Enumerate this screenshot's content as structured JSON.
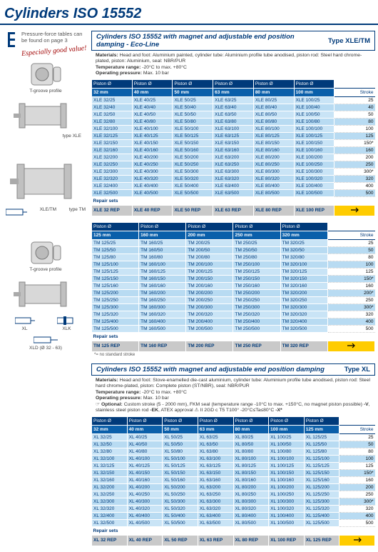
{
  "page_title": "Cylinders ISO 15552",
  "sidebar": {
    "note": "Pressure-force tables can be found on page 3",
    "good_value": "Especially good value!",
    "captions": {
      "t_groove": "T-groove profile",
      "type_xle": "type XLE",
      "xle_tm": "XLE/TM",
      "type_tm": "type TM",
      "xl": "XL",
      "xlk": "XLK",
      "xld": "XLD (Ø 32 - 63)"
    }
  },
  "sections": [
    {
      "title": "Cylinders ISO 15552 with magnet and adjustable end position damping - Eco-Line",
      "type_label": "Type XLE/TM",
      "specs": [
        "<b>Materials:</b> Head and foot: Aluminium painted, cylinder tube: Aluminium profile tube anodised, piston rod: Steel hard chrome-plated, piston: Aluminium, seal: NBR/PUR",
        "<b>Temperature range:</b> -20°C to max. +80°C",
        "<b>Operating pressure:</b> Max. 10 bar"
      ],
      "col_header_label": "Piston Ø",
      "col_subheaders": [
        "32 mm",
        "40 mm",
        "50 mm",
        "63 mm",
        "80 mm",
        "100 mm"
      ],
      "stroke_col": "Stroke",
      "rows": [
        {
          "c": [
            "XLE 32/25",
            "XLE 40/25",
            "XLE 50/25",
            "XLE 63/25",
            "XLE 80/25",
            "XLE 100/25"
          ],
          "s": "25"
        },
        {
          "c": [
            "XLE 32/40",
            "XLE 40/40",
            "XLE 50/40",
            "XLE 63/40",
            "XLE 80/40",
            "XLE 100/40"
          ],
          "s": "40"
        },
        {
          "c": [
            "XLE 32/50",
            "XLE 40/50",
            "XLE 50/50",
            "XLE 63/50",
            "XLE 80/50",
            "XLE 100/50"
          ],
          "s": "50"
        },
        {
          "c": [
            "XLE 32/80",
            "XLE 40/80",
            "XLE 50/80",
            "XLE 63/80",
            "XLE 80/80",
            "XLE 100/80"
          ],
          "s": "80"
        },
        {
          "c": [
            "XLE 32/100",
            "XLE 40/100",
            "XLE 50/100",
            "XLE 63/100",
            "XLE 80/100",
            "XLE 100/100"
          ],
          "s": "100"
        },
        {
          "c": [
            "XLE 32/125",
            "XLE 40/125",
            "XLE 50/125",
            "XLE 63/125",
            "XLE 80/125",
            "XLE 100/125"
          ],
          "s": "125"
        },
        {
          "c": [
            "XLE 32/150",
            "XLE 40/150",
            "XLE 50/150",
            "XLE 63/150",
            "XLE 80/150",
            "XLE 100/150"
          ],
          "s": "150*"
        },
        {
          "c": [
            "XLE 32/160",
            "XLE 40/160",
            "XLE 50/160",
            "XLE 63/160",
            "XLE 80/160",
            "XLE 100/160"
          ],
          "s": "160"
        },
        {
          "c": [
            "XLE 32/200",
            "XLE 40/200",
            "XLE 50/200",
            "XLE 63/200",
            "XLE 80/200",
            "XLE 100/200"
          ],
          "s": "200"
        },
        {
          "c": [
            "XLE 32/250",
            "XLE 40/250",
            "XLE 50/250",
            "XLE 63/250",
            "XLE 80/250",
            "XLE 100/250"
          ],
          "s": "250"
        },
        {
          "c": [
            "XLE 32/300",
            "XLE 40/300",
            "XLE 50/300",
            "XLE 63/300",
            "XLE 80/300",
            "XLE 100/300"
          ],
          "s": "300*"
        },
        {
          "c": [
            "XLE 32/320",
            "XLE 40/320",
            "XLE 50/320",
            "XLE 63/320",
            "XLE 80/320",
            "XLE 100/320"
          ],
          "s": "320"
        },
        {
          "c": [
            "XLE 32/400",
            "XLE 40/400",
            "XLE 50/400",
            "XLE 63/400",
            "XLE 80/400",
            "XLE 100/400"
          ],
          "s": "400"
        },
        {
          "c": [
            "XLE 32/500",
            "XLE 40/500",
            "XLE 50/500",
            "XLE 63/500",
            "XLE 80/500",
            "XLE 100/500"
          ],
          "s": "500"
        }
      ],
      "repair_label": "Repair sets",
      "repair_row": [
        "XLE 32 REP",
        "XLE 40 REP",
        "XLE 50 REP",
        "XLE 63 REP",
        "XLE 80 REP",
        "XLE 100 REP"
      ],
      "footnote": ""
    },
    {
      "title": "",
      "type_label": "",
      "specs": [],
      "col_header_label": "Piston Ø",
      "col_subheaders": [
        "125 mm",
        "160 mm",
        "200 mm",
        "250 mm",
        "320 mm"
      ],
      "stroke_col": "Stroke",
      "rows": [
        {
          "c": [
            "TM 125/25",
            "TM 160/25",
            "TM 200/25",
            "TM 250/25",
            "TM 320/25"
          ],
          "s": "25"
        },
        {
          "c": [
            "TM 125/50",
            "TM 160/50",
            "TM 200/50",
            "TM 250/50",
            "TM 320/50"
          ],
          "s": "50"
        },
        {
          "c": [
            "TM 125/80",
            "TM 160/80",
            "TM 200/80",
            "TM 250/80",
            "TM 320/80"
          ],
          "s": "80"
        },
        {
          "c": [
            "TM 125/100",
            "TM 160/100",
            "TM 200/100",
            "TM 250/100",
            "TM 320/100"
          ],
          "s": "100"
        },
        {
          "c": [
            "TM 125/125",
            "TM 160/125",
            "TM 200/125",
            "TM 250/125",
            "TM 320/125"
          ],
          "s": "125"
        },
        {
          "c": [
            "TM 125/150",
            "TM 160/150",
            "TM 200/150",
            "TM 250/150",
            "TM 320/150"
          ],
          "s": "150*"
        },
        {
          "c": [
            "TM 125/160",
            "TM 160/160",
            "TM 200/160",
            "TM 250/160",
            "TM 320/160"
          ],
          "s": "160"
        },
        {
          "c": [
            "TM 125/200",
            "TM 160/200",
            "TM 200/200",
            "TM 250/200",
            "TM 320/200"
          ],
          "s": "200*"
        },
        {
          "c": [
            "TM 125/250",
            "TM 160/250",
            "TM 200/250",
            "TM 250/250",
            "TM 320/250"
          ],
          "s": "250"
        },
        {
          "c": [
            "TM 125/300",
            "TM 160/300",
            "TM 200/300",
            "TM 250/300",
            "TM 320/300"
          ],
          "s": "300*"
        },
        {
          "c": [
            "TM 125/320",
            "TM 160/320",
            "TM 200/320",
            "TM 250/320",
            "TM 320/320"
          ],
          "s": "320"
        },
        {
          "c": [
            "TM 125/400",
            "TM 160/400",
            "TM 200/400",
            "TM 250/400",
            "TM 320/400"
          ],
          "s": "400"
        },
        {
          "c": [
            "TM 125/500",
            "TM 160/500",
            "TM 200/500",
            "TM 250/500",
            "TM 320/500"
          ],
          "s": "500"
        }
      ],
      "repair_label": "Repair sets",
      "repair_row": [
        "TM 125 REP",
        "TM 160 REP",
        "TM 200 REP",
        "TM 250 REP",
        "TM 320 REP"
      ],
      "footnote": "*= no standard stroke"
    },
    {
      "title": "Cylinders ISO 15552 with magnet and adjustable end position damping",
      "type_label": "Type XL",
      "specs": [
        "<b>Materials:</b> Head and foot: Stove-enamelled die-cast aluminium, cylinder tube: Aluminium profile tube anodised, piston rod: Steel hard chrome-plated, piston: Complete piston (ST/NBR), seal: NBR/PUR",
        "<b>Temperature range:</b> -20°C to max. +80°C",
        "<b>Operating pressure:</b> Max. 10 bar",
        "☞ <b>Optional:</b> Custom stroke (5 - 2000 mm), FKM seal (temperature range -10°C to max. +150°C, no magnet piston possible) <b>-V</b>, stainless steel piston rod <b>-EK</b>, ATEX approval ⚠ II 2GD c T5 T100° -20°C≤Ta≤80°C <b>-X*</b>"
      ],
      "col_header_label": "Piston Ø",
      "col_subheaders": [
        "32 mm",
        "40 mm",
        "50 mm",
        "63 mm",
        "80 mm",
        "100 mm",
        "125 mm"
      ],
      "stroke_col": "Stroke",
      "rows": [
        {
          "c": [
            "XL 32/25",
            "XL 40/25",
            "XL 50/25",
            "XL 63/25",
            "XL 80/25",
            "XL 100/25",
            "XL 125/25"
          ],
          "s": "25"
        },
        {
          "c": [
            "XL 32/50",
            "XL 40/50",
            "XL 50/50",
            "XL 63/50",
            "XL 80/50",
            "XL 100/50",
            "XL 125/50"
          ],
          "s": "50"
        },
        {
          "c": [
            "XL 32/80",
            "XL 40/80",
            "XL 50/80",
            "XL 63/80",
            "XL 80/80",
            "XL 100/80",
            "XL 125/80"
          ],
          "s": "80"
        },
        {
          "c": [
            "XL 32/100",
            "XL 40/100",
            "XL 50/100",
            "XL 63/100",
            "XL 80/100",
            "XL 100/100",
            "XL 125/100"
          ],
          "s": "100"
        },
        {
          "c": [
            "XL 32/125",
            "XL 40/125",
            "XL 50/125",
            "XL 63/125",
            "XL 80/125",
            "XL 100/125",
            "XL 125/125"
          ],
          "s": "125"
        },
        {
          "c": [
            "XL 32/150",
            "XL 40/150",
            "XL 50/150",
            "XL 63/150",
            "XL 80/150",
            "XL 100/150",
            "XL 125/150"
          ],
          "s": "150*"
        },
        {
          "c": [
            "XL 32/160",
            "XL 40/160",
            "XL 50/160",
            "XL 63/160",
            "XL 80/160",
            "XL 100/160",
            "XL 125/160"
          ],
          "s": "160"
        },
        {
          "c": [
            "XL 32/200",
            "XL 40/200",
            "XL 50/200",
            "XL 63/200",
            "XL 80/200",
            "XL 100/200",
            "XL 125/200"
          ],
          "s": "200"
        },
        {
          "c": [
            "XL 32/250",
            "XL 40/250",
            "XL 50/250",
            "XL 63/250",
            "XL 80/250",
            "XL 100/250",
            "XL 125/250"
          ],
          "s": "250"
        },
        {
          "c": [
            "XL 32/300",
            "XL 40/300",
            "XL 50/300",
            "XL 63/300",
            "XL 80/300",
            "XL 100/300",
            "XL 125/300"
          ],
          "s": "300*"
        },
        {
          "c": [
            "XL 32/320",
            "XL 40/320",
            "XL 50/320",
            "XL 63/320",
            "XL 80/320",
            "XL 100/320",
            "XL 125/320"
          ],
          "s": "320"
        },
        {
          "c": [
            "XL 32/400",
            "XL 40/400",
            "XL 50/400",
            "XL 63/400",
            "XL 80/400",
            "XL 100/400",
            "XL 125/400"
          ],
          "s": "400"
        },
        {
          "c": [
            "XL 32/500",
            "XL 40/500",
            "XL 50/500",
            "XL 63/500",
            "XL 80/500",
            "XL 100/500",
            "XL 125/500"
          ],
          "s": "500"
        }
      ],
      "repair_label": "Repair sets",
      "repair_row": [
        "XL 32 REP",
        "XL 40 REP",
        "XL 50 REP",
        "XL 63 REP",
        "XL 80 REP",
        "XL 100 REP",
        "XL 125 REP"
      ],
      "footnote": ""
    }
  ]
}
